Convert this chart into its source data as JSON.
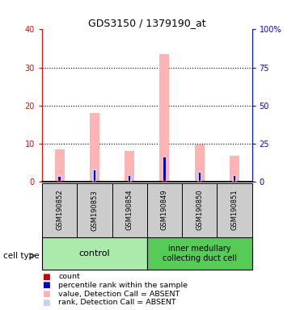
{
  "title": "GDS3150 / 1379190_at",
  "samples": [
    "GSM190852",
    "GSM190853",
    "GSM190854",
    "GSM190849",
    "GSM190850",
    "GSM190851"
  ],
  "value_absent": [
    8.5,
    18.0,
    8.0,
    33.5,
    9.8,
    6.8
  ],
  "rank_absent_pct": [
    4.0,
    8.5,
    3.8,
    16.5,
    6.0,
    3.8
  ],
  "count_val": [
    0.25,
    0.25,
    0.25,
    0.25,
    0.25,
    0.25
  ],
  "percentile_pct": [
    3.0,
    7.0,
    3.5,
    16.0,
    5.5,
    3.5
  ],
  "ylim_left": [
    0,
    40
  ],
  "ylim_right": [
    0,
    100
  ],
  "yticks_left": [
    0,
    10,
    20,
    30,
    40
  ],
  "yticks_right": [
    0,
    25,
    50,
    75,
    100
  ],
  "yticklabels_left": [
    "0",
    "10",
    "20",
    "30",
    "40"
  ],
  "yticklabels_right": [
    "0",
    "25",
    "50",
    "75",
    "100%"
  ],
  "color_value_absent": "#ffb3b3",
  "color_rank_absent": "#c8d0f5",
  "color_count": "#cc0000",
  "color_percentile": "#0000cc",
  "group_color_control": "#aaeaaa",
  "group_color_inner": "#55cc55",
  "sample_box_color": "#cccccc",
  "plot_bg_color": "#ffffff"
}
